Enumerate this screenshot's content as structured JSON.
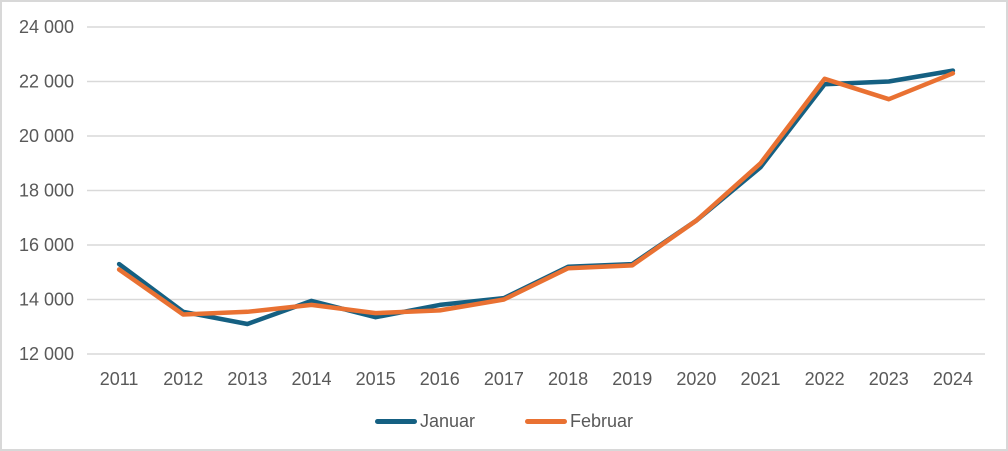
{
  "chart_data": {
    "type": "line",
    "title": "",
    "xlabel": "",
    "ylabel": "",
    "categories": [
      "2011",
      "2012",
      "2013",
      "2014",
      "2015",
      "2016",
      "2017",
      "2018",
      "2019",
      "2020",
      "2021",
      "2022",
      "2023",
      "2024"
    ],
    "series": [
      {
        "name": "Januar",
        "color": "#156082",
        "values": [
          15300,
          13550,
          13100,
          13950,
          13350,
          13800,
          14050,
          15200,
          15300,
          16900,
          18850,
          21900,
          22000,
          22400
        ]
      },
      {
        "name": "Februar",
        "color": "#E97132",
        "values": [
          15100,
          13450,
          13550,
          13800,
          13500,
          13600,
          14000,
          15150,
          15250,
          16900,
          19000,
          22100,
          21350,
          22300
        ]
      }
    ],
    "ylim": [
      12000,
      24000
    ],
    "ytick_step": 2000,
    "ytick_labels": [
      "12 000",
      "14 000",
      "16 000",
      "18 000",
      "20 000",
      "22 000",
      "24 000"
    ],
    "grid": "horizontal",
    "gridline_color": "#d9d9d9",
    "axis_label_color": "#595959",
    "legend_position": "bottom"
  }
}
